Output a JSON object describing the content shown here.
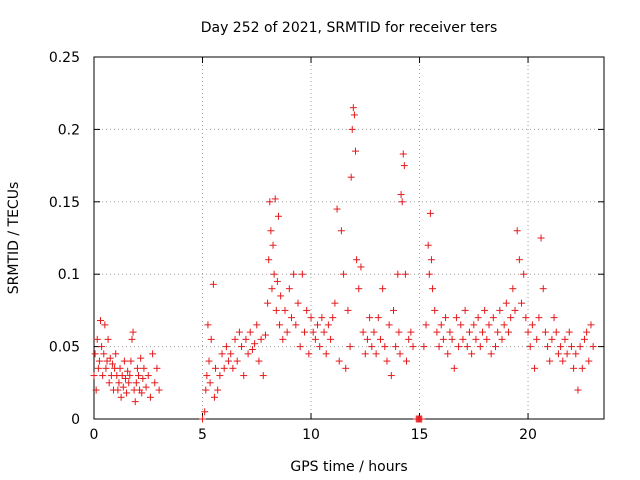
{
  "chart_data": {
    "type": "scatter",
    "title": "Day 252 of 2021, SRMTID for receiver ters",
    "xlabel": "GPS time / hours",
    "ylabel": "SRMTID / TECUs",
    "xlim": [
      0,
      23.5
    ],
    "ylim": [
      0,
      0.25
    ],
    "x_ticks": [
      0,
      5,
      10,
      15,
      20
    ],
    "y_ticks": [
      0,
      0.05,
      0.1,
      0.15,
      0.2,
      0.25
    ],
    "x_tick_labels": [
      "0",
      "5",
      "10",
      "15",
      "20"
    ],
    "y_tick_labels": [
      "0",
      "0.05",
      "0.1",
      "0.15",
      "0.2",
      "0.25"
    ],
    "grid": true,
    "marker": "+",
    "series": [
      {
        "color": "#e41a1c",
        "points": [
          [
            0.0,
            0.03
          ],
          [
            0.05,
            0.045
          ],
          [
            0.1,
            0.02
          ],
          [
            0.15,
            0.055
          ],
          [
            0.2,
            0.035
          ],
          [
            0.25,
            0.04
          ],
          [
            0.3,
            0.068
          ],
          [
            0.35,
            0.05
          ],
          [
            0.4,
            0.03
          ],
          [
            0.45,
            0.045
          ],
          [
            0.5,
            0.065
          ],
          [
            0.55,
            0.035
          ],
          [
            0.6,
            0.04
          ],
          [
            0.65,
            0.055
          ],
          [
            0.7,
            0.025
          ],
          [
            0.75,
            0.042
          ],
          [
            0.8,
            0.03
          ],
          [
            0.85,
            0.038
          ],
          [
            0.9,
            0.02
          ],
          [
            0.95,
            0.035
          ],
          [
            1.0,
            0.045
          ],
          [
            1.05,
            0.03
          ],
          [
            1.1,
            0.02
          ],
          [
            1.15,
            0.025
          ],
          [
            1.2,
            0.035
          ],
          [
            1.25,
            0.015
          ],
          [
            1.3,
            0.03
          ],
          [
            1.35,
            0.022
          ],
          [
            1.4,
            0.04
          ],
          [
            1.45,
            0.028
          ],
          [
            1.5,
            0.018
          ],
          [
            1.55,
            0.033
          ],
          [
            1.6,
            0.025
          ],
          [
            1.65,
            0.03
          ],
          [
            1.7,
            0.04
          ],
          [
            1.75,
            0.055
          ],
          [
            1.8,
            0.06
          ],
          [
            1.85,
            0.02
          ],
          [
            1.9,
            0.012
          ],
          [
            1.95,
            0.025
          ],
          [
            2.0,
            0.035
          ],
          [
            2.05,
            0.03
          ],
          [
            2.1,
            0.02
          ],
          [
            2.15,
            0.042
          ],
          [
            2.2,
            0.018
          ],
          [
            2.25,
            0.028
          ],
          [
            2.3,
            0.035
          ],
          [
            2.4,
            0.022
          ],
          [
            2.5,
            0.03
          ],
          [
            2.6,
            0.015
          ],
          [
            2.7,
            0.045
          ],
          [
            2.8,
            0.025
          ],
          [
            2.9,
            0.035
          ],
          [
            3.0,
            0.02
          ],
          [
            5.0,
            0.0
          ],
          [
            5.1,
            0.005
          ],
          [
            5.15,
            0.02
          ],
          [
            5.2,
            0.03
          ],
          [
            5.25,
            0.065
          ],
          [
            5.3,
            0.04
          ],
          [
            5.35,
            0.025
          ],
          [
            5.4,
            0.055
          ],
          [
            5.5,
            0.093
          ],
          [
            5.55,
            0.015
          ],
          [
            5.6,
            0.035
          ],
          [
            5.7,
            0.02
          ],
          [
            5.8,
            0.03
          ],
          [
            5.9,
            0.045
          ],
          [
            6.0,
            0.035
          ],
          [
            6.1,
            0.05
          ],
          [
            6.2,
            0.04
          ],
          [
            6.3,
            0.045
          ],
          [
            6.4,
            0.035
          ],
          [
            6.5,
            0.055
          ],
          [
            6.6,
            0.04
          ],
          [
            6.7,
            0.06
          ],
          [
            6.8,
            0.05
          ],
          [
            6.9,
            0.03
          ],
          [
            7.0,
            0.055
          ],
          [
            7.1,
            0.045
          ],
          [
            7.2,
            0.06
          ],
          [
            7.3,
            0.048
          ],
          [
            7.4,
            0.052
          ],
          [
            7.5,
            0.065
          ],
          [
            7.6,
            0.04
          ],
          [
            7.7,
            0.055
          ],
          [
            7.8,
            0.03
          ],
          [
            7.9,
            0.058
          ],
          [
            8.0,
            0.08
          ],
          [
            8.05,
            0.11
          ],
          [
            8.1,
            0.15
          ],
          [
            8.15,
            0.13
          ],
          [
            8.2,
            0.09
          ],
          [
            8.25,
            0.12
          ],
          [
            8.3,
            0.1
          ],
          [
            8.35,
            0.152
          ],
          [
            8.4,
            0.075
          ],
          [
            8.45,
            0.095
          ],
          [
            8.5,
            0.14
          ],
          [
            8.55,
            0.065
          ],
          [
            8.6,
            0.085
          ],
          [
            8.7,
            0.055
          ],
          [
            8.8,
            0.075
          ],
          [
            8.9,
            0.06
          ],
          [
            9.0,
            0.09
          ],
          [
            9.1,
            0.07
          ],
          [
            9.2,
            0.1
          ],
          [
            9.3,
            0.065
          ],
          [
            9.4,
            0.08
          ],
          [
            9.5,
            0.05
          ],
          [
            9.6,
            0.1
          ],
          [
            9.7,
            0.06
          ],
          [
            9.8,
            0.075
          ],
          [
            9.9,
            0.045
          ],
          [
            10.0,
            0.07
          ],
          [
            10.1,
            0.06
          ],
          [
            10.2,
            0.055
          ],
          [
            10.3,
            0.065
          ],
          [
            10.4,
            0.05
          ],
          [
            10.5,
            0.07
          ],
          [
            10.6,
            0.06
          ],
          [
            10.7,
            0.045
          ],
          [
            10.8,
            0.065
          ],
          [
            10.9,
            0.055
          ],
          [
            11.0,
            0.07
          ],
          [
            11.1,
            0.08
          ],
          [
            11.2,
            0.145
          ],
          [
            11.3,
            0.04
          ],
          [
            11.4,
            0.13
          ],
          [
            11.5,
            0.1
          ],
          [
            11.6,
            0.035
          ],
          [
            11.7,
            0.075
          ],
          [
            11.8,
            0.05
          ],
          [
            11.85,
            0.167
          ],
          [
            11.9,
            0.2
          ],
          [
            11.95,
            0.215
          ],
          [
            12.0,
            0.21
          ],
          [
            12.05,
            0.185
          ],
          [
            12.1,
            0.11
          ],
          [
            12.2,
            0.09
          ],
          [
            12.3,
            0.105
          ],
          [
            12.4,
            0.06
          ],
          [
            12.5,
            0.045
          ],
          [
            12.6,
            0.055
          ],
          [
            12.7,
            0.07
          ],
          [
            12.8,
            0.05
          ],
          [
            12.9,
            0.06
          ],
          [
            13.0,
            0.045
          ],
          [
            13.1,
            0.07
          ],
          [
            13.2,
            0.055
          ],
          [
            13.3,
            0.09
          ],
          [
            13.4,
            0.05
          ],
          [
            13.5,
            0.04
          ],
          [
            13.6,
            0.065
          ],
          [
            13.7,
            0.03
          ],
          [
            13.8,
            0.075
          ],
          [
            13.9,
            0.05
          ],
          [
            14.0,
            0.1
          ],
          [
            14.05,
            0.06
          ],
          [
            14.1,
            0.045
          ],
          [
            14.15,
            0.155
          ],
          [
            14.2,
            0.15
          ],
          [
            14.25,
            0.183
          ],
          [
            14.3,
            0.175
          ],
          [
            14.35,
            0.1
          ],
          [
            14.4,
            0.04
          ],
          [
            14.5,
            0.055
          ],
          [
            14.6,
            0.06
          ],
          [
            14.7,
            0.05
          ],
          [
            14.85,
            0.0
          ],
          [
            14.9,
            0.0
          ],
          [
            14.95,
            0.0
          ],
          [
            15.0,
            0.0
          ],
          [
            15.05,
            0.0
          ],
          [
            15.1,
            0.0
          ],
          [
            15.2,
            0.05
          ],
          [
            15.3,
            0.065
          ],
          [
            15.4,
            0.12
          ],
          [
            15.45,
            0.1
          ],
          [
            15.5,
            0.142
          ],
          [
            15.55,
            0.11
          ],
          [
            15.6,
            0.09
          ],
          [
            15.7,
            0.075
          ],
          [
            15.8,
            0.06
          ],
          [
            15.9,
            0.05
          ],
          [
            16.0,
            0.065
          ],
          [
            16.1,
            0.055
          ],
          [
            16.2,
            0.07
          ],
          [
            16.3,
            0.045
          ],
          [
            16.4,
            0.06
          ],
          [
            16.5,
            0.055
          ],
          [
            16.6,
            0.035
          ],
          [
            16.7,
            0.07
          ],
          [
            16.8,
            0.05
          ],
          [
            16.9,
            0.065
          ],
          [
            17.0,
            0.055
          ],
          [
            17.1,
            0.075
          ],
          [
            17.2,
            0.05
          ],
          [
            17.3,
            0.06
          ],
          [
            17.4,
            0.045
          ],
          [
            17.5,
            0.065
          ],
          [
            17.6,
            0.055
          ],
          [
            17.7,
            0.07
          ],
          [
            17.8,
            0.05
          ],
          [
            17.9,
            0.06
          ],
          [
            18.0,
            0.075
          ],
          [
            18.1,
            0.055
          ],
          [
            18.2,
            0.065
          ],
          [
            18.3,
            0.045
          ],
          [
            18.4,
            0.07
          ],
          [
            18.5,
            0.05
          ],
          [
            18.6,
            0.06
          ],
          [
            18.7,
            0.075
          ],
          [
            18.8,
            0.055
          ],
          [
            18.9,
            0.065
          ],
          [
            19.0,
            0.08
          ],
          [
            19.1,
            0.06
          ],
          [
            19.2,
            0.07
          ],
          [
            19.3,
            0.09
          ],
          [
            19.4,
            0.075
          ],
          [
            19.5,
            0.13
          ],
          [
            19.6,
            0.11
          ],
          [
            19.7,
            0.08
          ],
          [
            19.8,
            0.1
          ],
          [
            19.9,
            0.07
          ],
          [
            20.0,
            0.06
          ],
          [
            20.1,
            0.05
          ],
          [
            20.2,
            0.065
          ],
          [
            20.3,
            0.035
          ],
          [
            20.4,
            0.055
          ],
          [
            20.5,
            0.07
          ],
          [
            20.6,
            0.125
          ],
          [
            20.7,
            0.09
          ],
          [
            20.8,
            0.06
          ],
          [
            20.9,
            0.05
          ],
          [
            21.0,
            0.04
          ],
          [
            21.1,
            0.055
          ],
          [
            21.2,
            0.07
          ],
          [
            21.3,
            0.06
          ],
          [
            21.4,
            0.045
          ],
          [
            21.5,
            0.05
          ],
          [
            21.6,
            0.04
          ],
          [
            21.7,
            0.055
          ],
          [
            21.8,
            0.045
          ],
          [
            21.9,
            0.06
          ],
          [
            22.0,
            0.05
          ],
          [
            22.1,
            0.035
          ],
          [
            22.2,
            0.045
          ],
          [
            22.3,
            0.02
          ],
          [
            22.4,
            0.05
          ],
          [
            22.5,
            0.035
          ],
          [
            22.6,
            0.055
          ],
          [
            22.7,
            0.06
          ],
          [
            22.8,
            0.04
          ],
          [
            22.9,
            0.065
          ],
          [
            23.0,
            0.05
          ]
        ]
      }
    ]
  }
}
